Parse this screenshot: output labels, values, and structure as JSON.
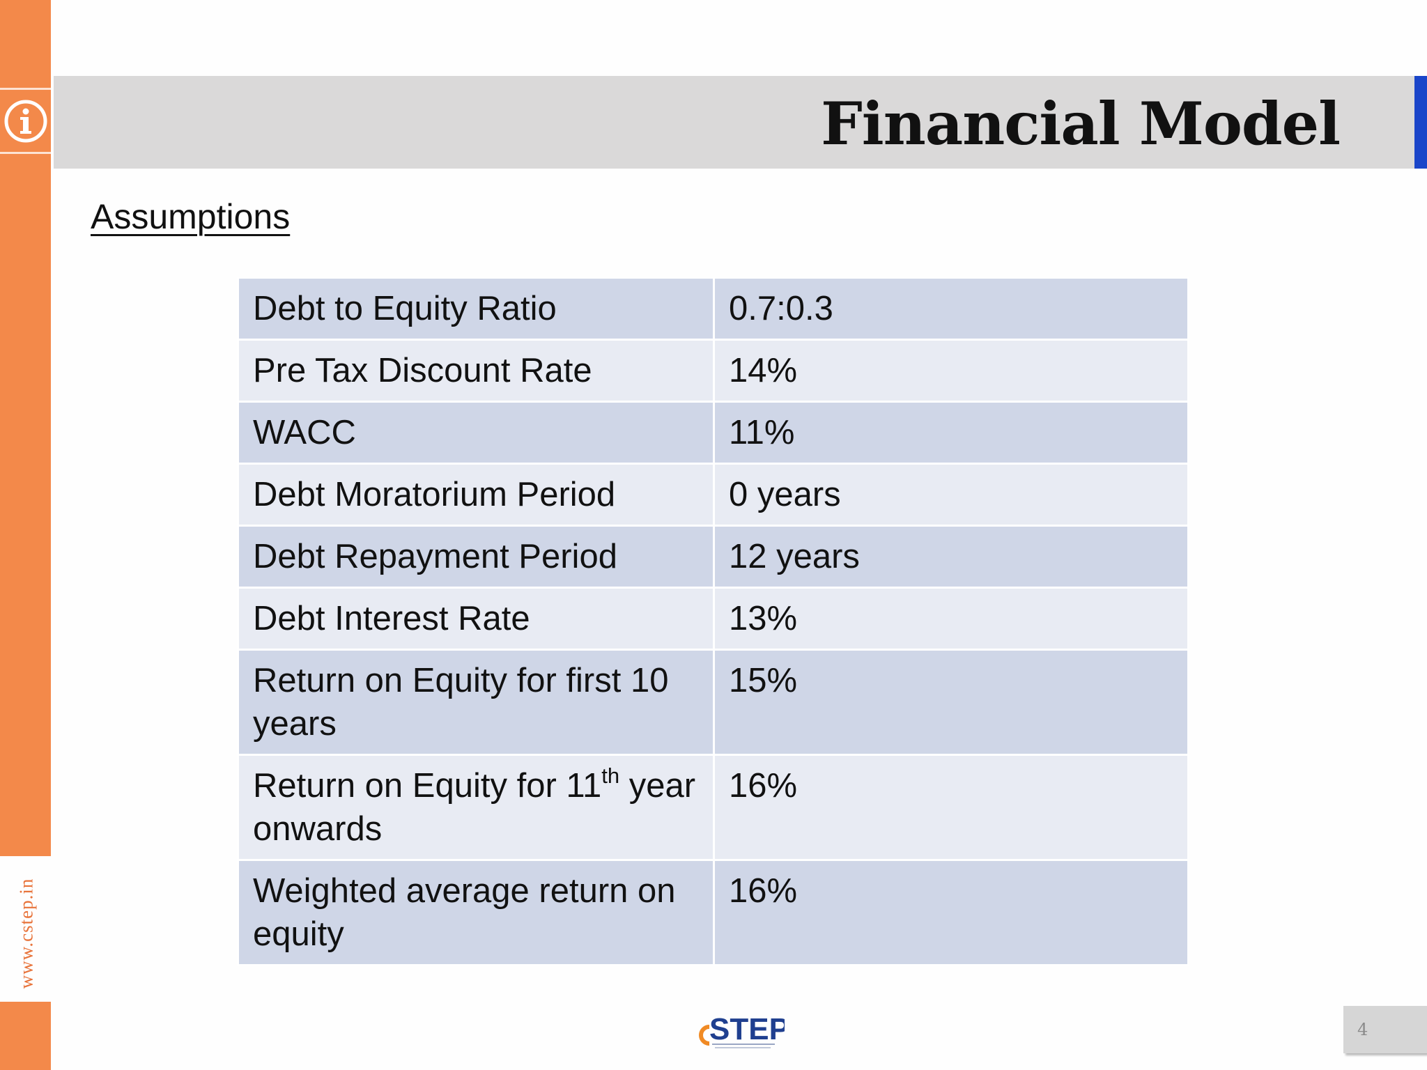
{
  "slide": {
    "title": "Financial Model",
    "subtitle": "Assumptions",
    "website": "www.cstep.in",
    "page_number": "4",
    "logo_text": "STEP",
    "logo_prefix": "c"
  },
  "table": {
    "rows": [
      {
        "label": "Debt to Equity Ratio",
        "value": "0.7:0.3"
      },
      {
        "label": "Pre Tax Discount Rate",
        "value": "14%"
      },
      {
        "label": "WACC",
        "value": "11%"
      },
      {
        "label": "Debt Moratorium Period",
        "value": "0 years"
      },
      {
        "label": "Debt Repayment Period",
        "value": "12 years"
      },
      {
        "label": "Debt Interest Rate",
        "value": "13%"
      },
      {
        "label": "Return on Equity for first 10 years",
        "value": "15%"
      },
      {
        "label_before": "Return on Equity for 11",
        "label_sup": "th",
        "label_after": " year onwards",
        "value": "16%"
      },
      {
        "label": "Weighted average return on equity",
        "value": "16%"
      }
    ]
  },
  "colors": {
    "sidebar": "#f3894a",
    "title_band": "#dad9d9",
    "title_accent": "#1a45c9",
    "row_dark": "#cfd6e7",
    "row_light": "#e8ebf3",
    "logo_orange": "#f08a24",
    "logo_blue": "#1f3f8f"
  },
  "icons": {
    "info": "info-circle-icon"
  }
}
